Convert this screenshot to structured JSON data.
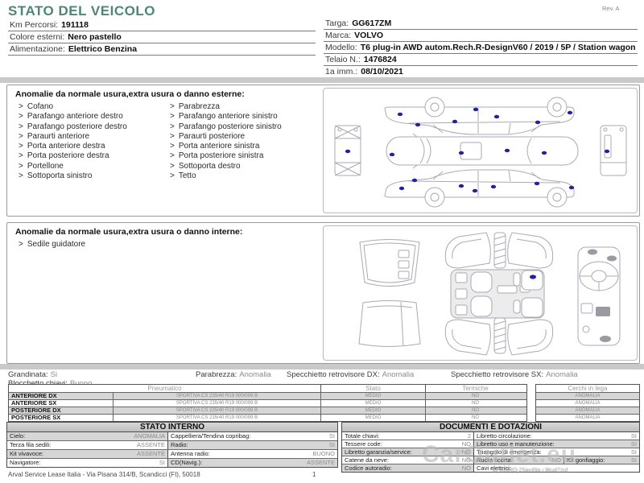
{
  "header": {
    "title": "STATO DEL VEICOLO",
    "rev": "Rev. A",
    "left_info": [
      {
        "label": "Km Percorsi:",
        "value": "191118"
      },
      {
        "label": "Colore esterni:",
        "value": "Nero pastello"
      },
      {
        "label": "Alimentazione:",
        "value": "Elettrico Benzina"
      }
    ],
    "right_info": [
      {
        "label": "Targa:",
        "value": "GG617ZM"
      },
      {
        "label": "Marca:",
        "value": "VOLVO"
      },
      {
        "label": "Modello:",
        "value": "T6 plug-in AWD autom.Rech.R-DesignV60 / 2019 / 5P / Station wagon"
      },
      {
        "label": "Telaio N.:",
        "value": "1476824"
      },
      {
        "label": "1a imm.:",
        "value": "08/10/2021"
      }
    ]
  },
  "glyphs": {
    "bullet": ">"
  },
  "exterior": {
    "heading": "Anomalie da normale usura,extra usura o danno esterne:",
    "col1": [
      "Cofano",
      "Parafango anteriore destro",
      "Parafango posteriore destro",
      "Paraurti anteriore",
      "Porta anteriore destra",
      "Porta posteriore destra",
      "Portellone",
      "Sottoporta sinistro"
    ],
    "col2": [
      "Parabrezza",
      "Parafango anteriore sinistro",
      "Parafango posteriore sinistro",
      "Paraurti posteriore",
      "Porta anteriore sinistra",
      "Porta posteriore sinistra",
      "Sottoporta destro",
      "Tetto"
    ]
  },
  "interior": {
    "heading": "Anomalie da normale usura,extra usura o danno interne:",
    "items": [
      "Sedile guidatore"
    ]
  },
  "status_row": {
    "grandinata_label": "Grandinata:",
    "grandinata_value": "Si",
    "blocchetto_label": "Blocchetto chiavi:",
    "blocchetto_value": "Buono",
    "parabrezza_label": "Parabrezza:",
    "parabrezza_value": "Anomalia",
    "specchietto_dx_label": "Specchietto retrovisore DX:",
    "specchietto_dx_value": "Anomalia",
    "specchietto_sx_label": "Specchietto retrovisore SX:",
    "specchietto_sx_value": "Anomalia"
  },
  "tires": {
    "headers": {
      "pneumatico": "Pneumatico",
      "stato": "Stato",
      "termiche": "Termiche",
      "cerchi": "Cerchi in lega"
    },
    "rows": [
      {
        "name": "ANTERIORE DX",
        "spec": "SPORTIVA CS 235/40 R19 000/099 B",
        "stato": "MEDIO",
        "termiche": "NO",
        "cerchi": "ANOMALIA"
      },
      {
        "name": "ANTERIORE SX",
        "spec": "SPORTIVA CS 235/40 R19 000/099 B",
        "stato": "MEDIO",
        "termiche": "NO",
        "cerchi": "ANOMALIA"
      },
      {
        "name": "POSTERIORE DX",
        "spec": "SPORTIVA CS 235/40 R19 000/099 B",
        "stato": "MEDIO",
        "termiche": "NO",
        "cerchi": "ANOMALIA"
      },
      {
        "name": "POSTERIORE SX",
        "spec": "SPORTIVA CS 235/40 R19 000/099 B",
        "stato": "MEDIO",
        "termiche": "NO",
        "cerchi": "ANOMALIA"
      }
    ]
  },
  "stato_interno": {
    "title": "STATO INTERNO",
    "rows": [
      {
        "l_label": "Cielo:",
        "l_value": "ANOMALIA",
        "r_label": "Cappelliera/Tendina copribag:",
        "r_value": "SI"
      },
      {
        "l_label": "Terza fila sedili:",
        "l_value": "ASSENTE",
        "r_label": "Radio:",
        "r_value": "SI"
      },
      {
        "l_label": "Kit vivavoce:",
        "l_value": "ASSENTE",
        "r_label": "Antenna radio:",
        "r_value": "BUONO"
      },
      {
        "l_label": "Navigatore:",
        "l_value": "SI",
        "r_label": "CD(Navig.):",
        "r_value": "ASSENTE"
      }
    ]
  },
  "documenti": {
    "title": "DOCUMENTI E DOTAZIONI",
    "rows": [
      {
        "l_label": "Totale chiavi:",
        "l_value": "2",
        "r_label": "Libretto circolazione:",
        "r_value": "SI"
      },
      {
        "l_label": "Tessere code:",
        "l_value": "NO",
        "r_label": "Libretto uso e manutenzione:",
        "r_value": "SI"
      },
      {
        "l_label": "Libretto garanzia/service:",
        "l_value": "NO",
        "r_label": "Triangolo di emergenza:",
        "r_value": "SI"
      },
      {
        "l_label": "Catene da neve:",
        "l_value": "NO",
        "r_label": "Ruota scorta:",
        "r_value": "NO",
        "r2_label": "Kit gonfiaggio:",
        "r2_value": "SI"
      },
      {
        "l_label": "Codice autoradio:",
        "l_value": "NO",
        "r_label": "Cavi elettrici:",
        "r_value": ""
      }
    ]
  },
  "footer": {
    "company": "Arval Service Lease Italia - Via Pisana 314/B, Scandicci (FI), 50018",
    "page": "1"
  },
  "watermark": {
    "text": "CarOutlet.eu",
    "id_line": "iD ku9RO-25av49a j.9kud7zuf"
  },
  "colors": {
    "accent": "#4f8577",
    "row_gray": "#d6d6d6",
    "bar_gray": "#c9c9c9",
    "damage_dot": "#22229a",
    "diagram_stroke": "#a9aab4"
  }
}
